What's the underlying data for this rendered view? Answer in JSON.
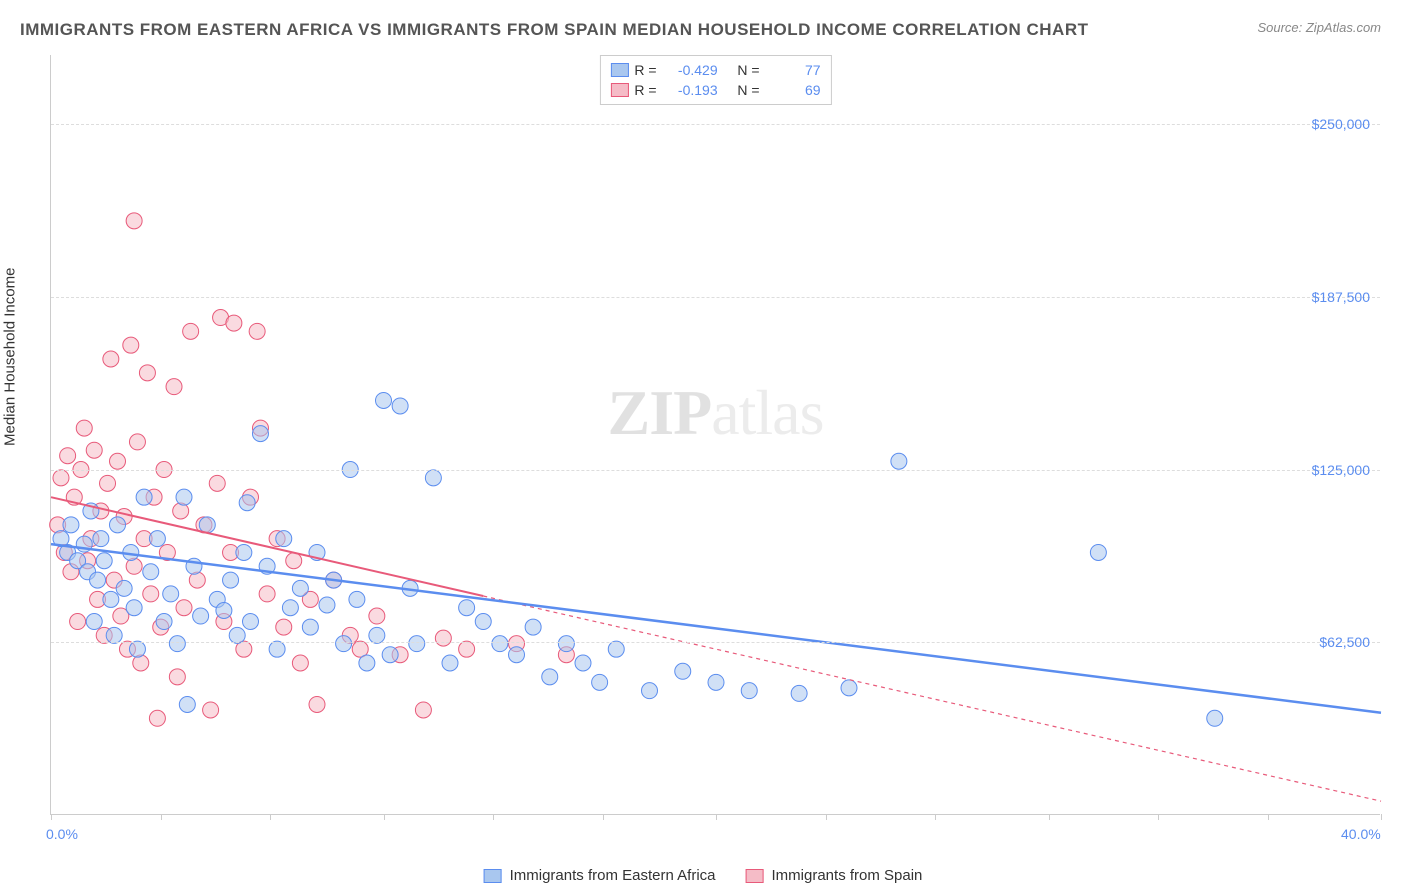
{
  "title": "IMMIGRANTS FROM EASTERN AFRICA VS IMMIGRANTS FROM SPAIN MEDIAN HOUSEHOLD INCOME CORRELATION CHART",
  "source": "Source: ZipAtlas.com",
  "watermark_zip": "ZIP",
  "watermark_atlas": "atlas",
  "yaxis_title": "Median Household Income",
  "chart": {
    "type": "scatter",
    "background_color": "#ffffff",
    "grid_color": "#dddddd",
    "axis_color": "#cccccc",
    "text_color": "#333333",
    "tick_label_color": "#5b8def",
    "title_fontsize": 17,
    "tick_fontsize": 14,
    "marker_radius": 8,
    "marker_opacity": 0.55,
    "xlim": [
      0,
      40
    ],
    "ylim": [
      0,
      275000
    ],
    "xtick_positions": [
      0,
      3.3,
      6.6,
      10,
      13.3,
      16.6,
      20,
      23.3,
      26.6,
      30,
      33.3,
      36.6,
      40
    ],
    "xtick_labels_show": {
      "0": "0.0%",
      "40": "40.0%"
    },
    "yticks": [
      62500,
      125000,
      187500,
      250000
    ],
    "ytick_labels": [
      "$62,500",
      "$125,000",
      "$187,500",
      "$250,000"
    ]
  },
  "series": {
    "eastern_africa": {
      "label": "Immigrants from Eastern Africa",
      "color_fill": "#a9c7ef",
      "color_stroke": "#5b8def",
      "R_label": "R =",
      "R": "-0.429",
      "N_label": "N =",
      "N": "77",
      "trendline": {
        "x1": 0,
        "y1": 98000,
        "x2": 40,
        "y2": 37000,
        "width": 2.5,
        "dash": "none"
      },
      "points": [
        [
          0.3,
          100000
        ],
        [
          0.5,
          95000
        ],
        [
          0.6,
          105000
        ],
        [
          0.8,
          92000
        ],
        [
          1.0,
          98000
        ],
        [
          1.1,
          88000
        ],
        [
          1.2,
          110000
        ],
        [
          1.3,
          70000
        ],
        [
          1.4,
          85000
        ],
        [
          1.5,
          100000
        ],
        [
          1.6,
          92000
        ],
        [
          1.8,
          78000
        ],
        [
          1.9,
          65000
        ],
        [
          2.0,
          105000
        ],
        [
          2.2,
          82000
        ],
        [
          2.4,
          95000
        ],
        [
          2.5,
          75000
        ],
        [
          2.6,
          60000
        ],
        [
          2.8,
          115000
        ],
        [
          3.0,
          88000
        ],
        [
          3.2,
          100000
        ],
        [
          3.4,
          70000
        ],
        [
          3.6,
          80000
        ],
        [
          3.8,
          62000
        ],
        [
          4.0,
          115000
        ],
        [
          4.1,
          40000
        ],
        [
          4.3,
          90000
        ],
        [
          4.5,
          72000
        ],
        [
          4.7,
          105000
        ],
        [
          5.0,
          78000
        ],
        [
          5.2,
          74000
        ],
        [
          5.4,
          85000
        ],
        [
          5.6,
          65000
        ],
        [
          5.8,
          95000
        ],
        [
          5.9,
          113000
        ],
        [
          6.0,
          70000
        ],
        [
          6.3,
          138000
        ],
        [
          6.5,
          90000
        ],
        [
          6.8,
          60000
        ],
        [
          7.0,
          100000
        ],
        [
          7.2,
          75000
        ],
        [
          7.5,
          82000
        ],
        [
          7.8,
          68000
        ],
        [
          8.0,
          95000
        ],
        [
          8.3,
          76000
        ],
        [
          8.5,
          85000
        ],
        [
          8.8,
          62000
        ],
        [
          9.0,
          125000
        ],
        [
          9.2,
          78000
        ],
        [
          9.5,
          55000
        ],
        [
          9.8,
          65000
        ],
        [
          10.0,
          150000
        ],
        [
          10.2,
          58000
        ],
        [
          10.5,
          148000
        ],
        [
          10.8,
          82000
        ],
        [
          11.0,
          62000
        ],
        [
          11.5,
          122000
        ],
        [
          12.0,
          55000
        ],
        [
          12.5,
          75000
        ],
        [
          13.0,
          70000
        ],
        [
          13.5,
          62000
        ],
        [
          14.0,
          58000
        ],
        [
          14.5,
          68000
        ],
        [
          15.0,
          50000
        ],
        [
          15.5,
          62000
        ],
        [
          16.0,
          55000
        ],
        [
          16.5,
          48000
        ],
        [
          17.0,
          60000
        ],
        [
          18.0,
          45000
        ],
        [
          19.0,
          52000
        ],
        [
          20.0,
          48000
        ],
        [
          21.0,
          45000
        ],
        [
          22.5,
          44000
        ],
        [
          24.0,
          46000
        ],
        [
          25.5,
          128000
        ],
        [
          31.5,
          95000
        ],
        [
          35.0,
          35000
        ]
      ]
    },
    "spain": {
      "label": "Immigrants from Spain",
      "color_fill": "#f5bcc7",
      "color_stroke": "#e85a7a",
      "R_label": "R =",
      "R": "-0.193",
      "N_label": "N =",
      "N": "69",
      "trendline": {
        "x1": 0,
        "y1": 115000,
        "x2": 40,
        "y2": 5000,
        "width": 1.2,
        "dash": "4,4",
        "solid_until_x": 13
      },
      "points": [
        [
          0.2,
          105000
        ],
        [
          0.3,
          122000
        ],
        [
          0.4,
          95000
        ],
        [
          0.5,
          130000
        ],
        [
          0.6,
          88000
        ],
        [
          0.7,
          115000
        ],
        [
          0.8,
          70000
        ],
        [
          0.9,
          125000
        ],
        [
          1.0,
          140000
        ],
        [
          1.1,
          92000
        ],
        [
          1.2,
          100000
        ],
        [
          1.3,
          132000
        ],
        [
          1.4,
          78000
        ],
        [
          1.5,
          110000
        ],
        [
          1.6,
          65000
        ],
        [
          1.7,
          120000
        ],
        [
          1.8,
          165000
        ],
        [
          1.9,
          85000
        ],
        [
          2.0,
          128000
        ],
        [
          2.1,
          72000
        ],
        [
          2.2,
          108000
        ],
        [
          2.3,
          60000
        ],
        [
          2.4,
          170000
        ],
        [
          2.5,
          90000
        ],
        [
          2.5,
          215000
        ],
        [
          2.6,
          135000
        ],
        [
          2.7,
          55000
        ],
        [
          2.8,
          100000
        ],
        [
          2.9,
          160000
        ],
        [
          3.0,
          80000
        ],
        [
          3.1,
          115000
        ],
        [
          3.2,
          35000
        ],
        [
          3.3,
          68000
        ],
        [
          3.4,
          125000
        ],
        [
          3.5,
          95000
        ],
        [
          3.7,
          155000
        ],
        [
          3.8,
          50000
        ],
        [
          3.9,
          110000
        ],
        [
          4.0,
          75000
        ],
        [
          4.2,
          175000
        ],
        [
          4.4,
          85000
        ],
        [
          4.6,
          105000
        ],
        [
          4.8,
          38000
        ],
        [
          5.0,
          120000
        ],
        [
          5.1,
          180000
        ],
        [
          5.2,
          70000
        ],
        [
          5.4,
          95000
        ],
        [
          5.5,
          178000
        ],
        [
          5.8,
          60000
        ],
        [
          6.0,
          115000
        ],
        [
          6.2,
          175000
        ],
        [
          6.3,
          140000
        ],
        [
          6.5,
          80000
        ],
        [
          6.8,
          100000
        ],
        [
          7.0,
          68000
        ],
        [
          7.3,
          92000
        ],
        [
          7.5,
          55000
        ],
        [
          7.8,
          78000
        ],
        [
          8.0,
          40000
        ],
        [
          8.5,
          85000
        ],
        [
          9.0,
          65000
        ],
        [
          9.3,
          60000
        ],
        [
          9.8,
          72000
        ],
        [
          10.5,
          58000
        ],
        [
          11.2,
          38000
        ],
        [
          11.8,
          64000
        ],
        [
          12.5,
          60000
        ],
        [
          14.0,
          62000
        ],
        [
          15.5,
          58000
        ]
      ]
    }
  }
}
